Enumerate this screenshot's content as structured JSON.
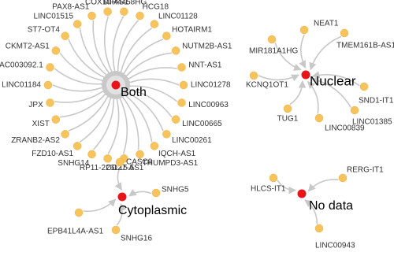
{
  "groups": [
    {
      "label": "Both",
      "nodes": [
        "MIR4458HG",
        "HCG18",
        "LINC01128",
        "HOTAIRM1",
        "NUTM2B-AS1",
        "NNT-AS1",
        "LINC01278",
        "LINC00963",
        "LINC00665",
        "LINC00261",
        "IQCH-AS1",
        "THUMPD3-AS1",
        "CD27-AS1",
        "RP11-226L15.5",
        "SNHG14",
        "FZD10-AS1",
        "ZRANB2-AS2",
        "XIST",
        "JPX",
        "LINC01184",
        "AC003092.1",
        "CKMT2-AS1",
        "ST7-OT4",
        "LINC01515",
        "PAX8-AS1",
        "COX10-AS1"
      ]
    },
    {
      "label": "Nuclear",
      "nodes": [
        "NEAT1",
        "TMEM161B-AS1",
        "SND1-IT1",
        "LINC01385",
        "LINC00839",
        "TUG1",
        "KCNQ1OT1",
        "MIR181A1HG"
      ]
    },
    {
      "label": "Cytoplasmic",
      "nodes": [
        "CASC8",
        "SNHG5",
        "SNHG16",
        "EPB41L4A-AS1"
      ]
    },
    {
      "label": "No data",
      "nodes": [
        "RERG-IT1",
        "LINC00943",
        "HLCS-IT1"
      ]
    }
  ]
}
